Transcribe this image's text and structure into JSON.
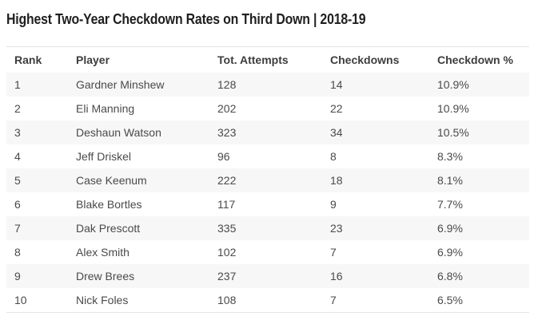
{
  "chart_data": {
    "type": "table",
    "title": "Highest Two-Year Checkdown Rates on Third Down | 2018-19",
    "columns": [
      "Rank",
      "Player",
      "Tot. Attempts",
      "Checkdowns",
      "Checkdown %"
    ],
    "column_keys": [
      "rank",
      "player",
      "tot-attempts",
      "checkdowns",
      "checkdown-pct"
    ],
    "rows": [
      [
        "1",
        "Gardner Minshew",
        "128",
        "14",
        "10.9%"
      ],
      [
        "2",
        "Eli Manning",
        "202",
        "22",
        "10.9%"
      ],
      [
        "3",
        "Deshaun Watson",
        "323",
        "34",
        "10.5%"
      ],
      [
        "4",
        "Jeff Driskel",
        "96",
        "8",
        "8.3%"
      ],
      [
        "5",
        "Case Keenum",
        "222",
        "18",
        "8.1%"
      ],
      [
        "6",
        "Blake Bortles",
        "117",
        "9",
        "7.7%"
      ],
      [
        "7",
        "Dak Prescott",
        "335",
        "23",
        "6.9%"
      ],
      [
        "8",
        "Alex Smith",
        "102",
        "7",
        "6.9%"
      ],
      [
        "9",
        "Drew Brees",
        "237",
        "16",
        "6.8%"
      ],
      [
        "10",
        "Nick Foles",
        "108",
        "7",
        "6.5%"
      ]
    ],
    "layout": {
      "zebra_striping": true,
      "striped_rows": "odd",
      "grid": "off",
      "rules": "top-and-bottom"
    }
  },
  "colors": {
    "title_text": "#1f1f1f",
    "header_text": "#3d3d3d",
    "body_text": "#4a4a4a",
    "stripe": "#f7f7f8",
    "border": "#e4e4e4",
    "background": "#ffffff"
  }
}
